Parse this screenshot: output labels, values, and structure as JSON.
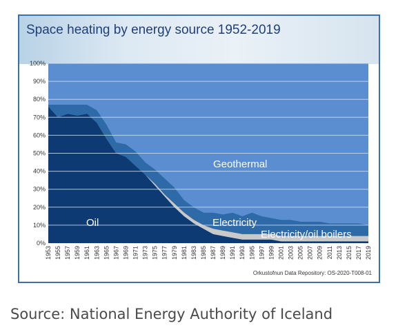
{
  "source_caption": "Source: National Energy Authority of Iceland",
  "chart_data": {
    "type": "area",
    "title": "Space heating by energy source 1952-2019",
    "credit": "Orkustofnun Data Repository: OS-2020-T008-01",
    "ylim": [
      0,
      100
    ],
    "y_ticks": [
      "0%",
      "10%",
      "20%",
      "30%",
      "40%",
      "50%",
      "60%",
      "70%",
      "80%",
      "90%",
      "100%"
    ],
    "x_ticks": [
      "1953",
      "1955",
      "1957",
      "1959",
      "1961",
      "1963",
      "1965",
      "1967",
      "1969",
      "1971",
      "1973",
      "1975",
      "1977",
      "1979",
      "1981",
      "1983",
      "1985",
      "1987",
      "1989",
      "1991",
      "1993",
      "1995",
      "1997",
      "1999",
      "2001",
      "2003",
      "2005",
      "2007",
      "2009",
      "2011",
      "2013",
      "2015",
      "2017",
      "2019"
    ],
    "grid": true,
    "stacking": "stacked to 100%",
    "x": [
      1953,
      1955,
      1957,
      1959,
      1961,
      1963,
      1965,
      1967,
      1969,
      1971,
      1973,
      1975,
      1977,
      1979,
      1981,
      1983,
      1985,
      1987,
      1989,
      1991,
      1993,
      1995,
      1997,
      1999,
      2001,
      2003,
      2005,
      2007,
      2009,
      2011,
      2013,
      2015,
      2017,
      2019
    ],
    "series": [
      {
        "name": "Oil",
        "color": "#0e3a73",
        "values": [
          76,
          70,
          72,
          71,
          72,
          67,
          58,
          50,
          48,
          43,
          38,
          32,
          26,
          20,
          15,
          11,
          8,
          5,
          4,
          3,
          2,
          2,
          2,
          2,
          1,
          1,
          1,
          1,
          1,
          1,
          1,
          1,
          1,
          1
        ]
      },
      {
        "name": "Electricity/oil boilers",
        "color": "#c9c9c9",
        "values": [
          0,
          0,
          0,
          0,
          0,
          0,
          0,
          0,
          0,
          0,
          0,
          1,
          1,
          2,
          2,
          2,
          2,
          3,
          3,
          3,
          3,
          3,
          3,
          3,
          3,
          3,
          3,
          3,
          3,
          3,
          3,
          3,
          3,
          3
        ]
      },
      {
        "name": "Electricity",
        "color": "#2f6aa8",
        "values": [
          1,
          7,
          5,
          6,
          5,
          7,
          8,
          6,
          7,
          8,
          7,
          8,
          9,
          9,
          7,
          7,
          7,
          9,
          9,
          11,
          10,
          12,
          10,
          9,
          9,
          9,
          8,
          8,
          8,
          7,
          7,
          7,
          7,
          6
        ]
      },
      {
        "name": "Geothermal",
        "color": "#5b8ed0",
        "values": [
          23,
          23,
          23,
          23,
          23,
          26,
          34,
          44,
          45,
          49,
          55,
          59,
          64,
          69,
          76,
          80,
          83,
          83,
          84,
          83,
          85,
          83,
          85,
          86,
          87,
          87,
          88,
          88,
          88,
          89,
          89,
          89,
          89,
          90
        ]
      }
    ]
  }
}
